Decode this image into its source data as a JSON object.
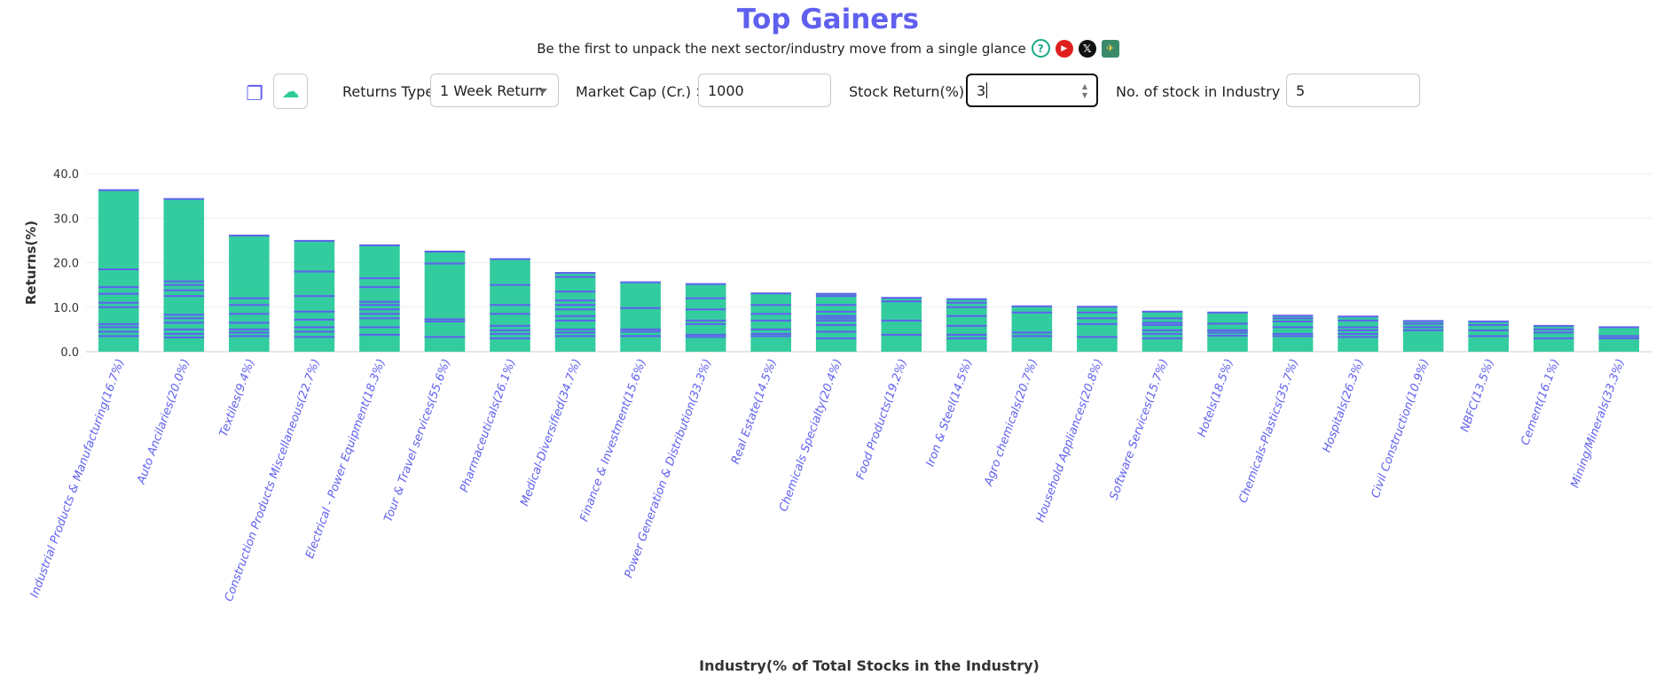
{
  "page": {
    "title": "Top Gainers",
    "subtitle": "Be the first to unpack the next sector/industry move from a single glance",
    "icons": [
      "help-icon",
      "youtube-icon",
      "x-icon",
      "telegram-icon"
    ]
  },
  "controls": {
    "returns_type_label": "Returns Type:",
    "returns_type_value": "1 Week Return",
    "market_cap_label": "Market Cap (Cr.) >",
    "market_cap_value": "1000",
    "stock_return_label": "Stock Return(%) >",
    "stock_return_value": "3",
    "num_stock_label": "No. of stock in Industry >=",
    "num_stock_value": "5"
  },
  "colors": {
    "bar": "#33cc9f",
    "segment_line": "#6060ee",
    "accent": "#6060ee"
  },
  "chart_data": {
    "type": "bar",
    "stacked": true,
    "ylabel": "Returns(%)",
    "xlabel": "Industry(% of Total Stocks in the Industry)",
    "ylim": [
      0,
      40
    ],
    "yticks": [
      0,
      10,
      20,
      30,
      40
    ],
    "ytick_labels": [
      "0.0",
      "10.0",
      "20.0",
      "30.0",
      "40.0"
    ],
    "grid": true,
    "categories": [
      "Industrial Products & Manufacturing(16.7%)",
      "Auto Ancilaries(20.0%)",
      "Textiles(9.4%)",
      "Construction Products Miscellaneous(22.7%)",
      "Electrical - Power Equipment(18.3%)",
      "Tour & Travel services(55.6%)",
      "Pharmaceuticals(26.1%)",
      "Medical-Diversified(34.7%)",
      "Finance & Investment(15.6%)",
      "Power Generation & Distribution(33.3%)",
      "Real Estate(14.5%)",
      "Chemicals Specialty(20.4%)",
      "Food Products(19.2%)",
      "Iron & Steel(14.5%)",
      "Agro chemicals(20.7%)",
      "Household Appliances(20.8%)",
      "Software Services(15.7%)",
      "Hotels(18.5%)",
      "Chemicals-Plastics(35.7%)",
      "Hospitals(26.3%)",
      "Civil Construction(10.9%)",
      "NBFC(13.5%)",
      "Cement(16.1%)",
      "Mining/Minerals(33.3%)"
    ],
    "values": [
      36.3,
      34.3,
      26.1,
      24.9,
      23.9,
      22.5,
      20.8,
      17.7,
      15.6,
      15.2,
      13.1,
      13.0,
      12.1,
      11.8,
      10.2,
      10.1,
      9.0,
      8.8,
      8.1,
      7.9,
      6.9,
      6.8,
      5.8,
      5.5
    ],
    "segments": [
      [
        3.5,
        4.5,
        5.5,
        6.2,
        10.0,
        11.0,
        13.0,
        14.5,
        18.5,
        36.3
      ],
      [
        3.2,
        4.0,
        5.0,
        6.5,
        7.5,
        8.3,
        12.5,
        13.8,
        15.0,
        15.8,
        34.3
      ],
      [
        3.5,
        4.3,
        5.0,
        6.5,
        8.5,
        10.5,
        12.0,
        26.1
      ],
      [
        3.3,
        4.5,
        5.5,
        7.2,
        9.0,
        12.5,
        18.0,
        24.9
      ],
      [
        3.8,
        5.5,
        7.5,
        8.5,
        9.5,
        10.5,
        11.2,
        14.5,
        16.5,
        23.9
      ],
      [
        3.3,
        6.8,
        7.3,
        19.8,
        22.5
      ],
      [
        3.0,
        4.0,
        4.8,
        5.8,
        8.5,
        10.5,
        15.0,
        20.8
      ],
      [
        3.5,
        4.3,
        5.0,
        7.0,
        8.0,
        9.5,
        10.5,
        11.5,
        13.5,
        16.8,
        17.7
      ],
      [
        3.5,
        4.5,
        5.0,
        9.8,
        15.6
      ],
      [
        3.3,
        3.8,
        6.2,
        7.0,
        9.5,
        12.0,
        15.2
      ],
      [
        3.5,
        4.0,
        5.0,
        7.0,
        8.5,
        10.5,
        13.1
      ],
      [
        3.0,
        4.5,
        6.0,
        7.0,
        7.5,
        8.0,
        9.0,
        10.5,
        12.5,
        13.0
      ],
      [
        3.8,
        7.0,
        11.3,
        12.1
      ],
      [
        3.0,
        3.8,
        5.8,
        8.0,
        10.0,
        11.0,
        11.8
      ],
      [
        3.5,
        4.3,
        8.8,
        10.2
      ],
      [
        3.3,
        6.2,
        7.5,
        8.8,
        10.1
      ],
      [
        3.0,
        4.0,
        4.8,
        6.0,
        6.5,
        7.5,
        9.0
      ],
      [
        3.6,
        4.3,
        4.8,
        6.3,
        8.8
      ],
      [
        3.5,
        4.0,
        5.5,
        6.8,
        7.5,
        8.1
      ],
      [
        3.3,
        4.0,
        4.8,
        5.5,
        7.0,
        7.9
      ],
      [
        4.8,
        5.5,
        6.3,
        6.9
      ],
      [
        3.5,
        4.8,
        6.0,
        6.8
      ],
      [
        3.0,
        4.3,
        5.0,
        5.8
      ],
      [
        3.0,
        3.5,
        5.5
      ]
    ]
  }
}
